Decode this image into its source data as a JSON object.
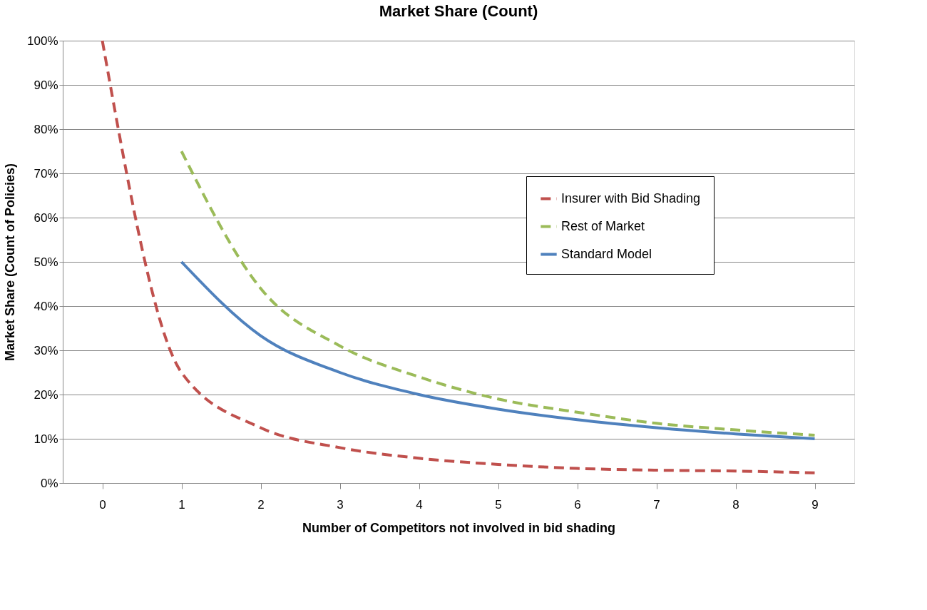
{
  "chart_data": {
    "type": "line",
    "title": "Market Share (Count)",
    "xlabel": "Number of Competitors not involved in bid shading",
    "ylabel": "Market Share (Count of Policies)",
    "categories": [
      "0",
      "1",
      "2",
      "3",
      "4",
      "5",
      "6",
      "7",
      "8",
      "9"
    ],
    "series": [
      {
        "name": "Insurer with Bid Shading",
        "color": "#c0504d",
        "line_style": "dashed",
        "values": [
          100,
          25,
          12.5,
          8,
          5.6,
          4.2,
          3.3,
          2.9,
          2.7,
          2.3
        ]
      },
      {
        "name": "Rest of Market",
        "color": "#9bbb59",
        "line_style": "dashed",
        "values": [
          null,
          75,
          44,
          31,
          24,
          19,
          16,
          13.5,
          12,
          10.8
        ]
      },
      {
        "name": "Standard Model",
        "color": "#4f81bd",
        "line_style": "solid",
        "values": [
          null,
          50,
          33.3,
          25,
          20,
          16.7,
          14.3,
          12.5,
          11.1,
          10
        ]
      }
    ],
    "ylim": [
      0,
      100
    ],
    "yticks": [
      {
        "value": 0,
        "label": "0%"
      },
      {
        "value": 10,
        "label": "10%"
      },
      {
        "value": 20,
        "label": "20%"
      },
      {
        "value": 30,
        "label": "30%"
      },
      {
        "value": 40,
        "label": "40%"
      },
      {
        "value": 50,
        "label": "50%"
      },
      {
        "value": 60,
        "label": "60%"
      },
      {
        "value": 70,
        "label": "70%"
      },
      {
        "value": 80,
        "label": "80%"
      },
      {
        "value": 90,
        "label": "90%"
      },
      {
        "value": 100,
        "label": "100%"
      }
    ],
    "grid": "y",
    "legend": "right",
    "marker": "none"
  }
}
